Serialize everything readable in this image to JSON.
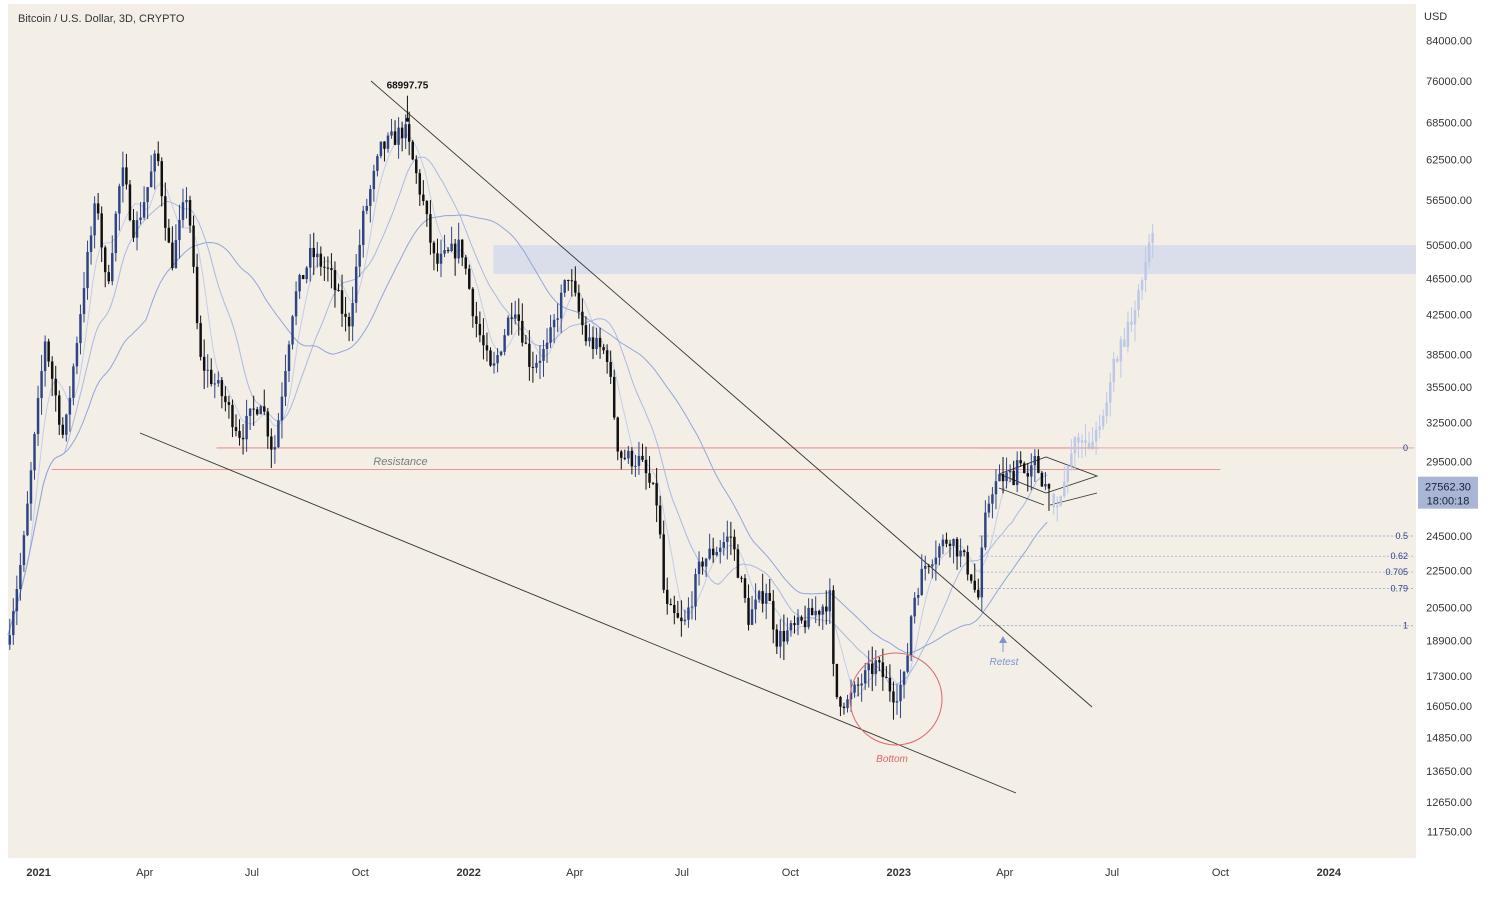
{
  "header": {
    "title": "Bitcoin / U.S. Dollar, 3D, CRYPTO",
    "currency": "USD"
  },
  "price_tag": {
    "price": "27562.30",
    "countdown": "18:00:18"
  },
  "colors": {
    "background": "#f3efe7",
    "candle_up": "#2f4484",
    "candle_down": "#111111",
    "projection": "#bcc8e6",
    "zone": "#d6dcea",
    "resistance": "#e07c7c",
    "ma_light": "#c2cde8",
    "ma_dark": "#93a6da"
  },
  "chart_data": {
    "type": "candlestick",
    "symbol": "BTC/USD",
    "interval": "3D",
    "y_scale": "log",
    "ylim": [
      11000,
      92000
    ],
    "xlim": [
      "2020-12-06",
      "2024-03-15"
    ],
    "y_ticks": [
      11750,
      12650,
      13650,
      14850,
      16050,
      17300,
      18900,
      20500,
      22500,
      24500,
      27500,
      29500,
      32500,
      35500,
      38500,
      42500,
      46500,
      50500,
      56500,
      62500,
      68500,
      76000,
      84000
    ],
    "y_tick_labels": [
      "11750.00",
      "12650.00",
      "13650.00",
      "14850.00",
      "16050.00",
      "17300.00",
      "18900.00",
      "20500.00",
      "22500.00",
      "24500.00",
      "27500.00",
      "29500.00",
      "32500.00",
      "35500.00",
      "38500.00",
      "42500.00",
      "46500.00",
      "50500.00",
      "56500.00",
      "62500.00",
      "68500.00",
      "76000.00",
      "84000.00"
    ],
    "x_ticks": [
      {
        "label": "2021",
        "date": "2021-01-01",
        "bold": true
      },
      {
        "label": "Apr",
        "date": "2021-04-01",
        "bold": false
      },
      {
        "label": "Jul",
        "date": "2021-07-01",
        "bold": false
      },
      {
        "label": "Oct",
        "date": "2021-10-01",
        "bold": false
      },
      {
        "label": "2022",
        "date": "2022-01-01",
        "bold": true
      },
      {
        "label": "Apr",
        "date": "2022-04-01",
        "bold": false
      },
      {
        "label": "Jul",
        "date": "2022-07-01",
        "bold": false
      },
      {
        "label": "Oct",
        "date": "2022-10-01",
        "bold": false
      },
      {
        "label": "2023",
        "date": "2023-01-01",
        "bold": true
      },
      {
        "label": "Apr",
        "date": "2023-04-01",
        "bold": false
      },
      {
        "label": "Jul",
        "date": "2023-07-01",
        "bold": false
      },
      {
        "label": "Oct",
        "date": "2023-10-01",
        "bold": false
      },
      {
        "label": "2024",
        "date": "2024-01-01",
        "bold": true
      }
    ],
    "price_path": [
      [
        "2020-12-06",
        18700
      ],
      [
        "2020-12-20",
        23500
      ],
      [
        "2021-01-08",
        40000
      ],
      [
        "2021-01-24",
        31000
      ],
      [
        "2021-02-10",
        46000
      ],
      [
        "2021-02-21",
        57000
      ],
      [
        "2021-03-01",
        45000
      ],
      [
        "2021-03-14",
        61000
      ],
      [
        "2021-03-25",
        52000
      ],
      [
        "2021-04-13",
        63500
      ],
      [
        "2021-04-25",
        48000
      ],
      [
        "2021-05-09",
        58000
      ],
      [
        "2021-05-19",
        38000
      ],
      [
        "2021-06-06",
        35000
      ],
      [
        "2021-06-23",
        31500
      ],
      [
        "2021-07-10",
        34500
      ],
      [
        "2021-07-21",
        30000
      ],
      [
        "2021-08-07",
        44000
      ],
      [
        "2021-08-22",
        49500
      ],
      [
        "2021-09-07",
        47000
      ],
      [
        "2021-09-22",
        41000
      ],
      [
        "2021-10-05",
        54000
      ],
      [
        "2021-10-20",
        64000
      ],
      [
        "2021-11-09",
        67500
      ],
      [
        "2021-11-25",
        56000
      ],
      [
        "2021-12-05",
        48000
      ],
      [
        "2021-12-27",
        50500
      ],
      [
        "2022-01-08",
        42000
      ],
      [
        "2022-01-22",
        36500
      ],
      [
        "2022-02-10",
        44000
      ],
      [
        "2022-02-24",
        37500
      ],
      [
        "2022-03-10",
        39000
      ],
      [
        "2022-03-28",
        47000
      ],
      [
        "2022-04-12",
        40000
      ],
      [
        "2022-04-30",
        38500
      ],
      [
        "2022-05-10",
        30000
      ],
      [
        "2022-05-28",
        29500
      ],
      [
        "2022-06-12",
        26500
      ],
      [
        "2022-06-18",
        20500
      ],
      [
        "2022-07-04",
        19500
      ],
      [
        "2022-07-19",
        23000
      ],
      [
        "2022-08-13",
        24500
      ],
      [
        "2022-08-28",
        20000
      ],
      [
        "2022-09-12",
        21500
      ],
      [
        "2022-09-21",
        19000
      ],
      [
        "2022-10-08",
        19500
      ],
      [
        "2022-10-28",
        20500
      ],
      [
        "2022-11-05",
        21000
      ],
      [
        "2022-11-09",
        16500
      ],
      [
        "2022-11-20",
        16200
      ],
      [
        "2022-12-01",
        17000
      ],
      [
        "2022-12-14",
        17800
      ],
      [
        "2022-12-30",
        16500
      ],
      [
        "2023-01-08",
        17200
      ],
      [
        "2023-01-14",
        20800
      ],
      [
        "2023-01-26",
        23000
      ],
      [
        "2023-02-15",
        24500
      ],
      [
        "2023-02-25",
        23300
      ],
      [
        "2023-03-07",
        22000
      ],
      [
        "2023-03-10",
        20300
      ],
      [
        "2023-03-16",
        25000
      ],
      [
        "2023-03-22",
        27600
      ],
      [
        "2023-04-01",
        28300
      ],
      [
        "2023-04-10",
        28500
      ],
      [
        "2023-04-15",
        30300
      ],
      [
        "2023-04-21",
        27800
      ],
      [
        "2023-04-28",
        29400
      ],
      [
        "2023-05-08",
        27600
      ]
    ],
    "projection_path": [
      [
        "2023-05-11",
        27200
      ],
      [
        "2023-05-17",
        26800
      ],
      [
        "2023-05-23",
        27400
      ],
      [
        "2023-05-29",
        30200
      ],
      [
        "2023-06-06",
        31600
      ],
      [
        "2023-06-15",
        30800
      ],
      [
        "2023-06-25",
        33200
      ],
      [
        "2023-07-05",
        38000
      ],
      [
        "2023-07-18",
        41500
      ],
      [
        "2023-07-27",
        46000
      ],
      [
        "2023-08-05",
        51000
      ]
    ],
    "ath": {
      "label": "68997.75",
      "date": "2021-11-10",
      "price": 68997.75
    },
    "overlays": {
      "resistance": {
        "label": "Resistance",
        "upper": 30500,
        "lower": 28900
      },
      "supply_zone": {
        "top": 50500,
        "bottom": 47000
      },
      "fib_levels": [
        {
          "label": "0",
          "price": 30500
        },
        {
          "label": "0.5",
          "price": 24500
        },
        {
          "label": "0.62",
          "price": 23300
        },
        {
          "label": "0.705",
          "price": 22400
        },
        {
          "label": "0.79",
          "price": 21500
        },
        {
          "label": "1",
          "price": 19600
        }
      ],
      "annotations": {
        "bottom": "Bottom",
        "retest": "Retest"
      }
    },
    "last_price": 27562.3
  }
}
